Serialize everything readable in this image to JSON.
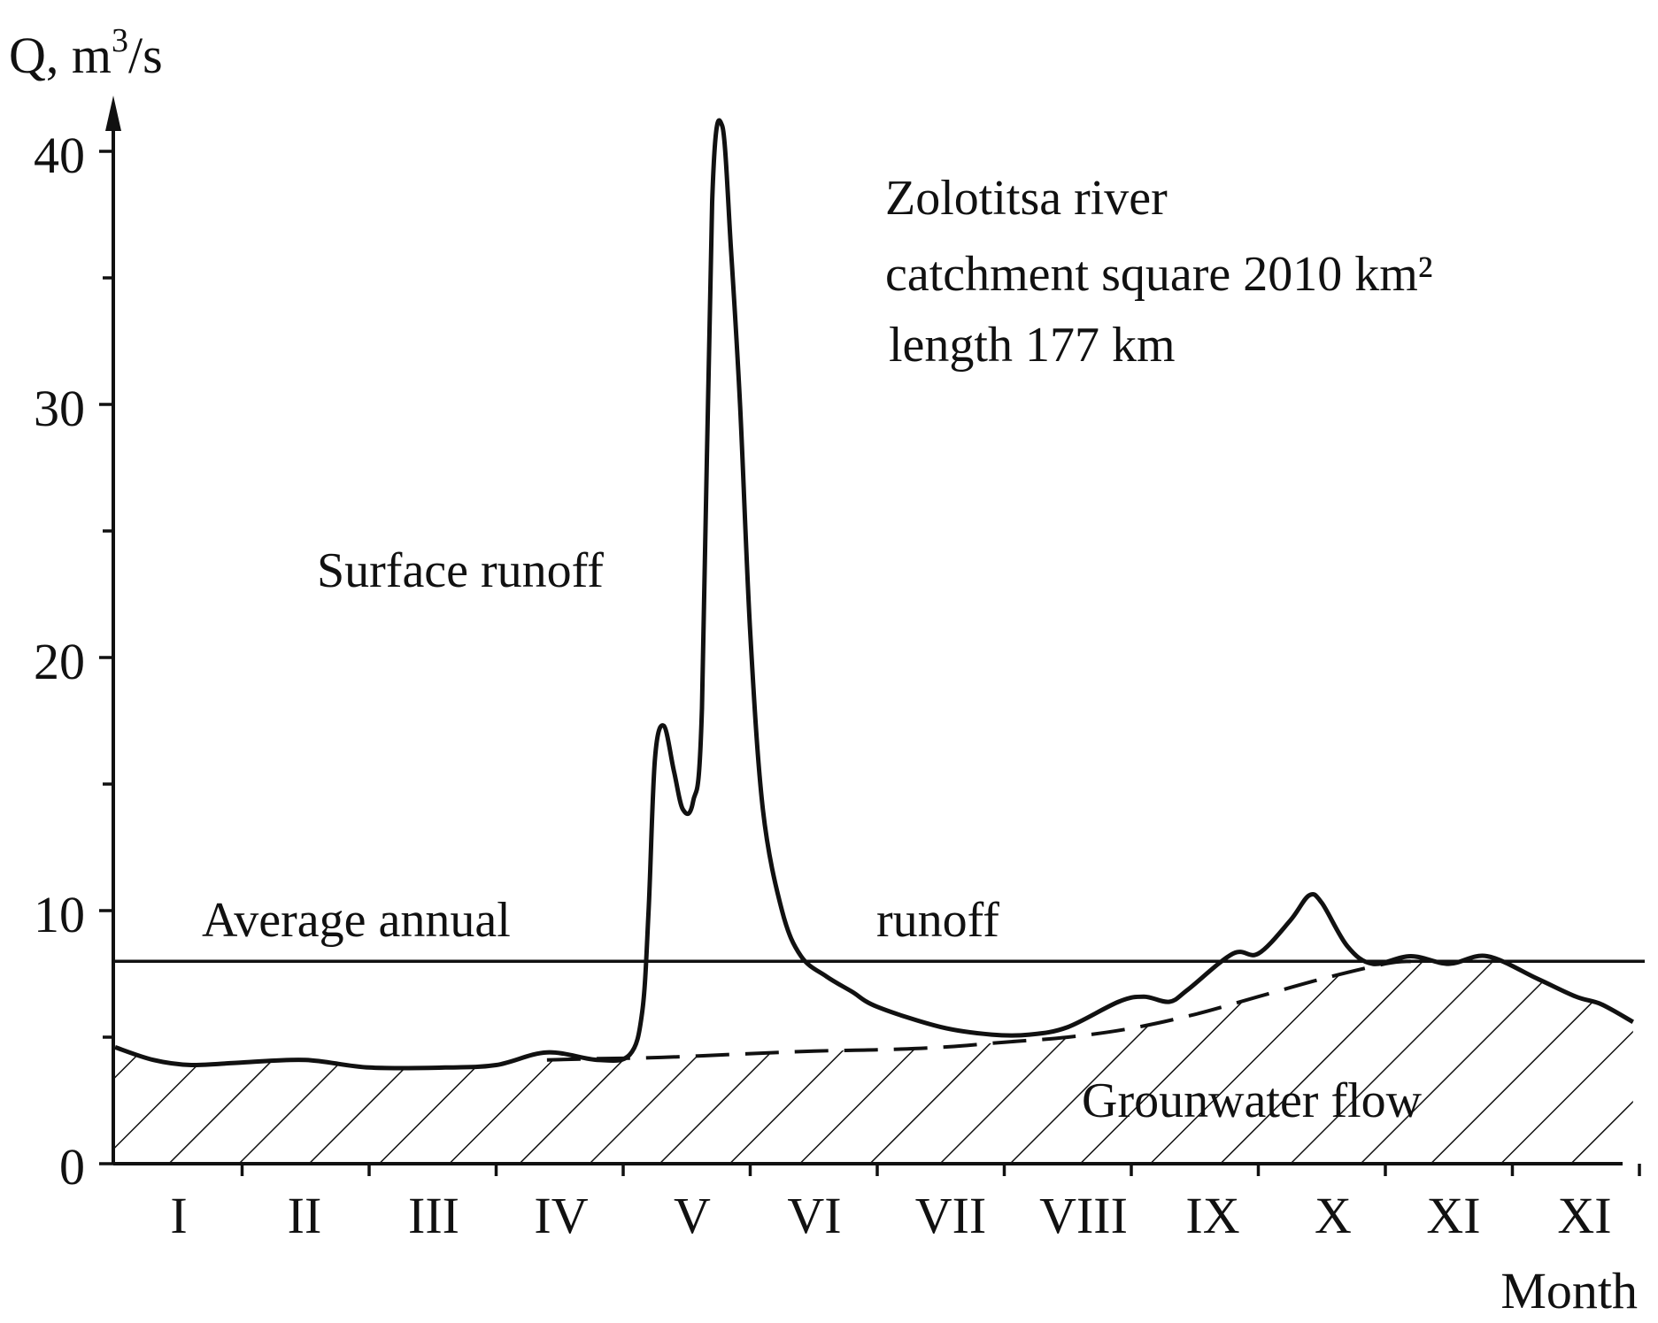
{
  "chart_data": {
    "type": "line",
    "ylabel": "Q, m",
    "ylabel_sup": "3",
    "ylabel_suffix": "/s",
    "xlabel": "Month",
    "ylim": [
      0,
      40
    ],
    "yticks": [
      "0",
      "10",
      "20",
      "30",
      "40"
    ],
    "categories": [
      "I",
      "II",
      "III",
      "IV",
      "V",
      "VI",
      "VII",
      "VIII",
      "IX",
      "X",
      "XI",
      "XI"
    ],
    "annotations": {
      "title": "Zolotitsa river",
      "area_line": "catchment square  2010 km²",
      "length_line": "length 177 km",
      "surface": "Surface runoff",
      "avg_left": "Average annual",
      "avg_right": "runoff",
      "ground": "Grounwater flow"
    },
    "series": [
      {
        "style": "solid",
        "x": [
          0,
          0.3,
          0.6,
          1.0,
          1.5,
          2.0,
          2.6,
          3.0,
          3.4,
          3.8,
          4.05,
          4.15,
          4.2,
          4.25,
          4.32,
          4.4,
          4.47,
          4.55,
          4.62,
          4.7,
          4.78,
          4.85,
          4.92,
          5.0,
          5.1,
          5.25,
          5.4,
          5.6,
          5.8,
          6.0,
          6.5,
          6.9,
          7.2,
          7.5,
          7.9,
          8.1,
          8.3,
          8.45,
          8.8,
          9.0,
          9.25,
          9.4,
          9.5,
          9.7,
          9.9,
          10.2,
          10.5,
          10.8,
          11.2,
          11.5,
          11.7,
          11.95
        ],
        "y": [
          4.6,
          4.1,
          3.9,
          4.0,
          4.1,
          3.8,
          3.8,
          3.9,
          4.4,
          4.1,
          4.3,
          6.0,
          10.0,
          16.0,
          17.3,
          15.5,
          14.0,
          14.3,
          18.0,
          38.0,
          41.0,
          36.0,
          30.0,
          21.0,
          14.0,
          10.0,
          8.2,
          7.4,
          6.8,
          6.2,
          5.4,
          5.1,
          5.1,
          5.4,
          6.4,
          6.6,
          6.4,
          6.9,
          8.3,
          8.3,
          9.6,
          10.6,
          10.3,
          8.6,
          7.9,
          8.2,
          7.9,
          8.2,
          7.3,
          6.6,
          6.3,
          5.6
        ]
      },
      {
        "style": "dashed",
        "x": [
          3.4,
          3.8,
          4.3,
          5.0,
          5.5,
          6.0,
          6.5,
          7.0,
          7.5,
          8.0,
          8.5,
          9.0,
          9.5,
          10.0,
          10.2
        ],
        "y": [
          4.1,
          4.15,
          4.2,
          4.35,
          4.45,
          4.5,
          4.6,
          4.8,
          5.0,
          5.35,
          5.9,
          6.6,
          7.3,
          7.9,
          8.0
        ]
      }
    ],
    "average_annual_runoff": 8.0,
    "hatched_region": "groundwater flow"
  }
}
